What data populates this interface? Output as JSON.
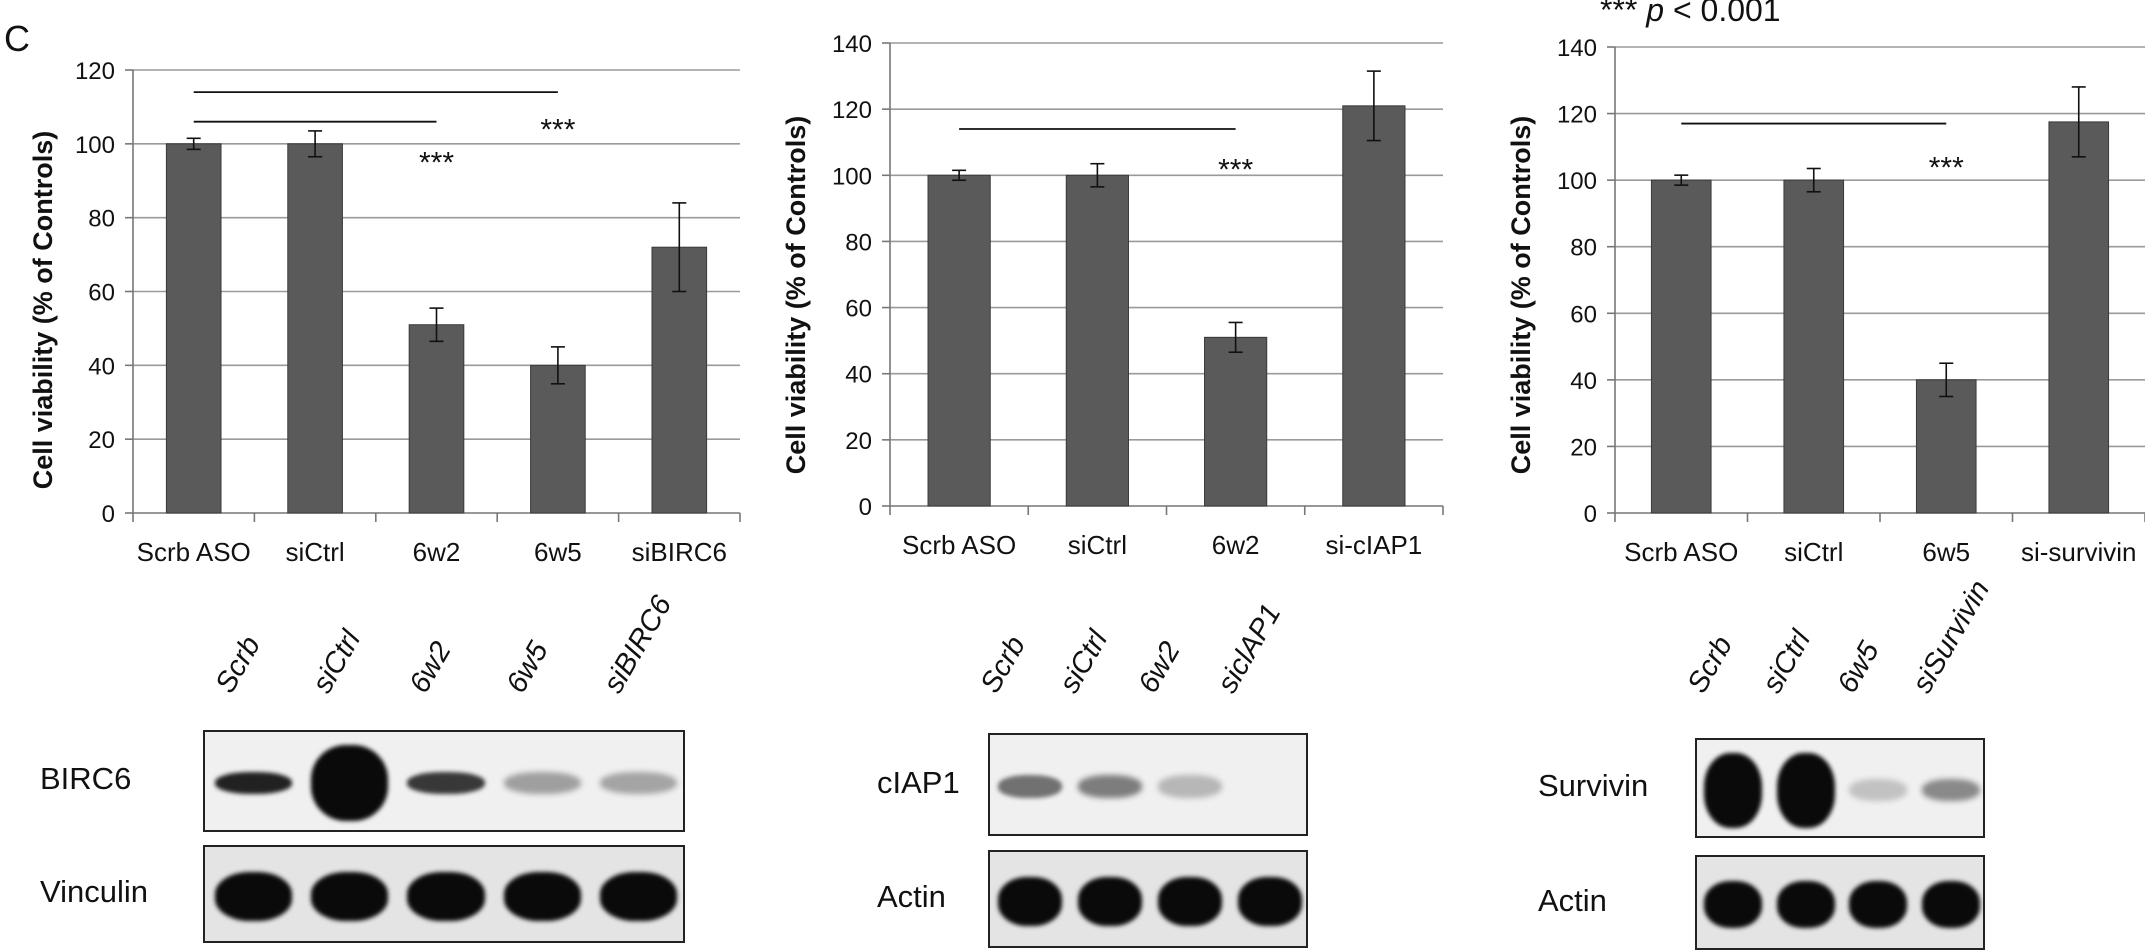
{
  "panel_label": "C",
  "significance_note": {
    "stars": "***",
    "p": "p",
    "rest": " < 0.001"
  },
  "chart_data": [
    {
      "type": "bar",
      "ylabel": "Cell viability (% of Controls)",
      "ylim": [
        0,
        120
      ],
      "yticks": [
        0,
        20,
        40,
        60,
        80,
        100,
        120
      ],
      "categories": [
        "Scrb ASO",
        "siCtrl",
        "6w2",
        "6w5",
        "siBIRC6"
      ],
      "values": [
        100,
        100,
        51,
        40,
        72
      ],
      "errors": [
        1.5,
        3.5,
        4.5,
        5,
        12
      ],
      "bar_color": "#5a5a5a",
      "grid": true,
      "brackets": [
        {
          "from": 0,
          "to": 2,
          "y": 106
        },
        {
          "from": 0,
          "to": 3,
          "y": 114
        }
      ],
      "annotations": [
        {
          "text": "***",
          "category": 2,
          "y": 96
        },
        {
          "text": "***",
          "category": 3,
          "y": 105
        }
      ]
    },
    {
      "type": "bar",
      "ylabel": "Cell viability (% of Controls)",
      "ylim": [
        0,
        140
      ],
      "yticks": [
        0,
        20,
        40,
        60,
        80,
        100,
        120,
        140
      ],
      "categories": [
        "Scrb ASO",
        "siCtrl",
        "6w2",
        "si-cIAP1"
      ],
      "values": [
        100,
        100,
        51,
        121
      ],
      "errors": [
        1.5,
        3.5,
        4.5,
        10.5
      ],
      "bar_color": "#5a5a5a",
      "grid": true,
      "brackets": [
        {
          "from": 0,
          "to": 2,
          "y": 114
        }
      ],
      "annotations": [
        {
          "text": "***",
          "category": 2,
          "y": 103
        }
      ]
    },
    {
      "type": "bar",
      "ylabel": "Cell viability (% of Controls)",
      "ylim": [
        0,
        140
      ],
      "yticks": [
        0,
        20,
        40,
        60,
        80,
        100,
        120,
        140
      ],
      "categories": [
        "Scrb ASO",
        "siCtrl",
        "6w5",
        "si-survivin"
      ],
      "values": [
        100,
        100,
        40,
        117.5
      ],
      "errors": [
        1.5,
        3.5,
        5,
        10.5
      ],
      "bar_color": "#5a5a5a",
      "grid": true,
      "brackets": [
        {
          "from": 0,
          "to": 2,
          "y": 117
        }
      ],
      "annotations": [
        {
          "text": "***",
          "category": 2,
          "y": 105
        }
      ]
    }
  ],
  "blots": [
    {
      "lanes": [
        "Scrb",
        "siCtrl",
        "6w2",
        "6w5",
        "siBIRC6"
      ],
      "rows": [
        {
          "label": "BIRC6",
          "intensity": [
            0.85,
            0.95,
            0.75,
            0.3,
            0.28
          ]
        },
        {
          "label": "Vinculin",
          "intensity": [
            1,
            1,
            1,
            1,
            1
          ]
        }
      ]
    },
    {
      "lanes": [
        "Scrb",
        "siCtrl",
        "6w2",
        "siclAP1"
      ],
      "rows": [
        {
          "label": "cIAP1",
          "intensity": [
            0.5,
            0.45,
            0.2,
            0
          ]
        },
        {
          "label": "Actin",
          "intensity": [
            1,
            1,
            1,
            1
          ]
        }
      ]
    },
    {
      "lanes": [
        "Scrb",
        "siCtrl",
        "6w5",
        "siSurvivin"
      ],
      "rows": [
        {
          "label": "Survivin",
          "intensity": [
            1,
            1,
            0.15,
            0.4
          ]
        },
        {
          "label": "Actin",
          "intensity": [
            1,
            1,
            1,
            1
          ]
        }
      ]
    }
  ]
}
